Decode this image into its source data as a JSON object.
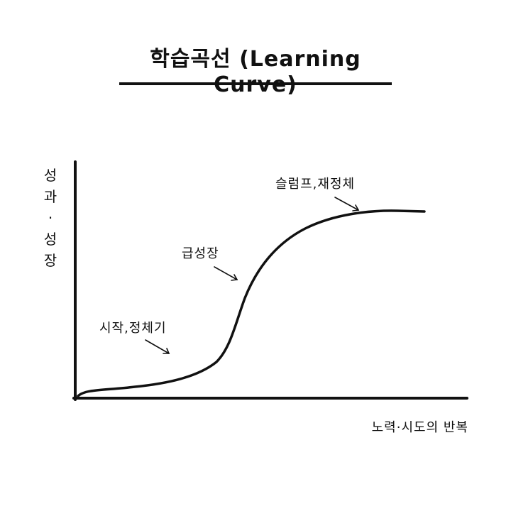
{
  "title": "학습곡선 (Learning Curve)",
  "y_axis_label": [
    "성",
    "과",
    "·",
    "성",
    "장"
  ],
  "x_axis_label": "노력·시도의 반복",
  "annotations": {
    "start": "시작,정체기",
    "growth": "급성장",
    "slump": "슬럼프,재정체"
  }
}
